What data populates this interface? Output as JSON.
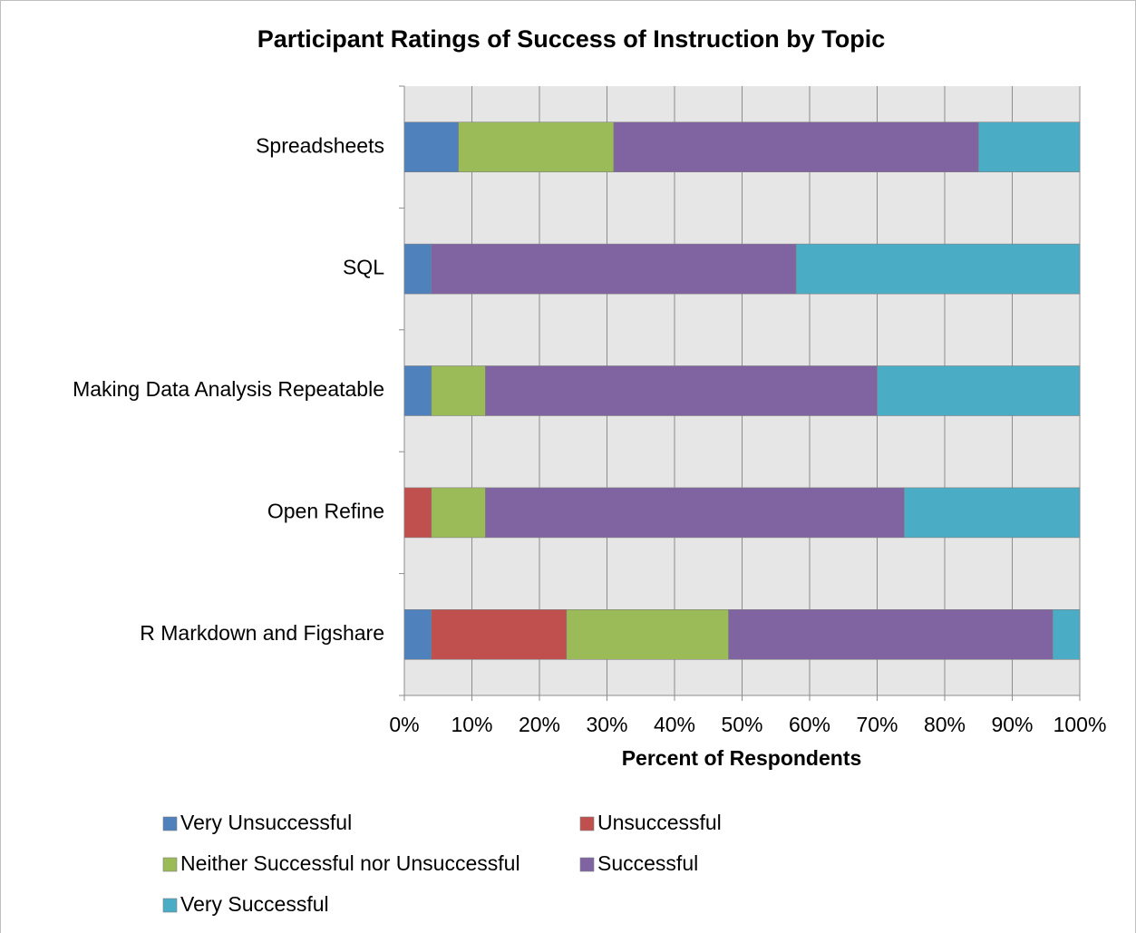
{
  "chart_data": {
    "type": "stacked_bar_horizontal",
    "title": "Participant Ratings of Success of Instruction by Topic",
    "x_label": "Percent of Respondents",
    "categories": [
      "Spreadsheets",
      "SQL",
      "Making Data Analysis Repeatable",
      "Open Refine",
      "R Markdown and Figshare"
    ],
    "series": [
      {
        "name": "Very Unsuccessful",
        "color": "#4f81bd",
        "values": [
          8,
          4,
          4,
          0,
          4
        ]
      },
      {
        "name": "Unsuccessful",
        "color": "#c0504d",
        "values": [
          0,
          0,
          0,
          4,
          20
        ]
      },
      {
        "name": "Neither Successful nor Unsuccessful",
        "color": "#9bbb59",
        "values": [
          23,
          0,
          8,
          8,
          24
        ]
      },
      {
        "name": "Successful",
        "color": "#8064a2",
        "values": [
          54,
          54,
          58,
          62,
          48
        ]
      },
      {
        "name": "Very Successful",
        "color": "#4bacc6",
        "values": [
          15,
          42,
          30,
          26,
          4
        ]
      }
    ],
    "xlim": [
      0,
      100
    ],
    "xticks": [
      {
        "value": 0,
        "label": "0%"
      },
      {
        "value": 10,
        "label": "10%"
      },
      {
        "value": 20,
        "label": "20%"
      },
      {
        "value": 30,
        "label": "30%"
      },
      {
        "value": 40,
        "label": "40%"
      },
      {
        "value": 50,
        "label": "50%"
      },
      {
        "value": 60,
        "label": "60%"
      },
      {
        "value": 70,
        "label": "70%"
      },
      {
        "value": 80,
        "label": "80%"
      },
      {
        "value": 90,
        "label": "90%"
      },
      {
        "value": 100,
        "label": "100%"
      }
    ],
    "grid": true,
    "legend": "bottom"
  }
}
